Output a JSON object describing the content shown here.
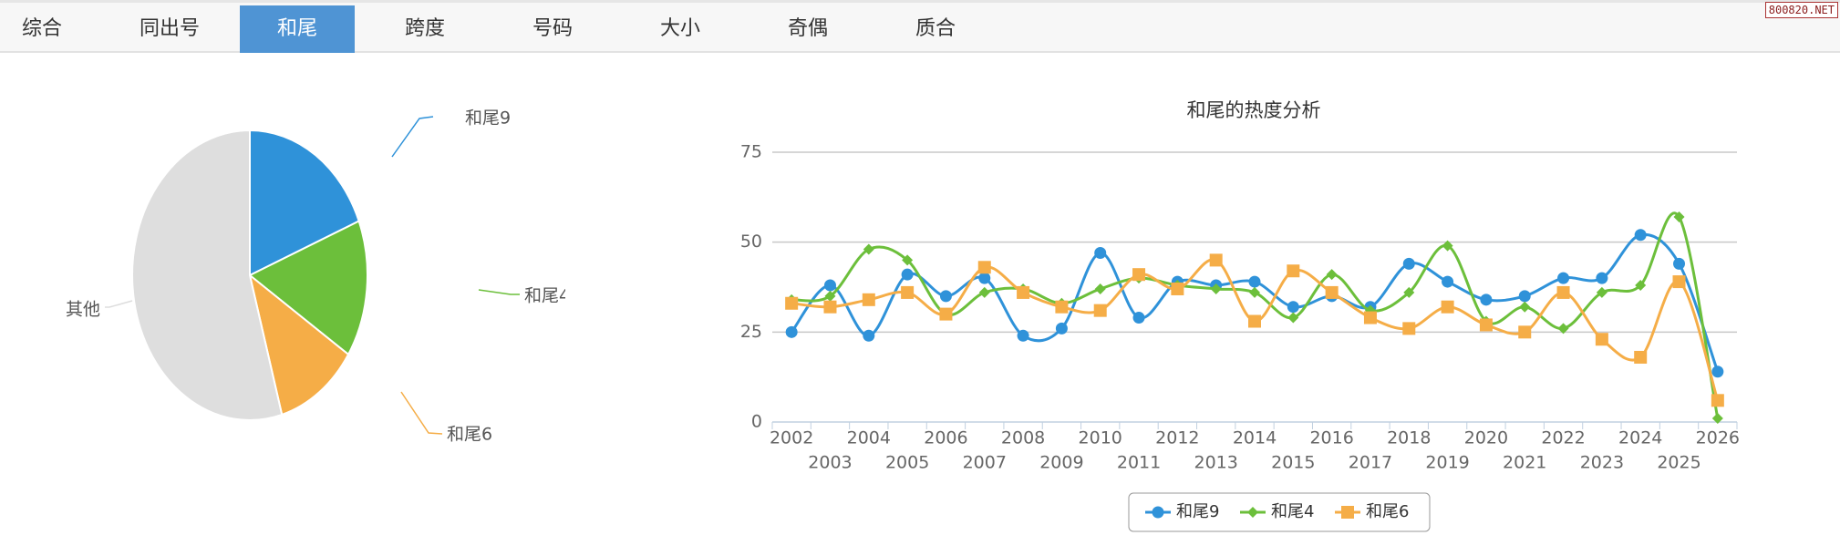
{
  "tabs": [
    {
      "label": "综合",
      "active": false
    },
    {
      "label": "同出号",
      "active": false
    },
    {
      "label": "和尾",
      "active": true
    },
    {
      "label": "跨度",
      "active": false
    },
    {
      "label": "号码",
      "active": false
    },
    {
      "label": "大小",
      "active": false
    },
    {
      "label": "奇偶",
      "active": false
    },
    {
      "label": "质合",
      "active": false
    }
  ],
  "watermark": "800820.NET",
  "chart_data": [
    {
      "type": "pie",
      "slices": [
        {
          "name": "和尾9",
          "value": 18.9,
          "color": "#2f92d9"
        },
        {
          "name": "和尾4",
          "value": 15.3,
          "color": "#6cbf3b"
        },
        {
          "name": "和尾6",
          "value": 11.4,
          "color": "#f5ad47"
        },
        {
          "name": "其他",
          "value": 54.4,
          "color": "#dedede"
        }
      ]
    },
    {
      "type": "line",
      "title": "和尾的热度分析",
      "categories": [
        "2002",
        "2003",
        "2004",
        "2005",
        "2006",
        "2007",
        "2008",
        "2009",
        "2010",
        "2011",
        "2012",
        "2013",
        "2014",
        "2015",
        "2016",
        "2017",
        "2018",
        "2019",
        "2020",
        "2021",
        "2022",
        "2023",
        "2024",
        "2025",
        "2026"
      ],
      "ylim": [
        0,
        75
      ],
      "yticks": [
        0,
        25,
        50,
        75
      ],
      "grid": true,
      "legend": "bottom-center",
      "series": [
        {
          "name": "和尾9",
          "color": "#2f92d9",
          "marker": "circle",
          "values": [
            25,
            38,
            24,
            41,
            35,
            40,
            24,
            26,
            47,
            29,
            39,
            38,
            39,
            32,
            35,
            32,
            44,
            39,
            34,
            35,
            40,
            40,
            52,
            44,
            14
          ]
        },
        {
          "name": "和尾4",
          "color": "#6cbf3b",
          "marker": "diamond",
          "values": [
            34,
            35,
            48,
            45,
            30,
            36,
            37,
            33,
            37,
            40,
            38,
            37,
            36,
            29,
            41,
            31,
            36,
            49,
            28,
            32,
            26,
            36,
            38,
            57,
            1
          ]
        },
        {
          "name": "和尾6",
          "color": "#f5ad47",
          "marker": "square",
          "values": [
            33,
            32,
            34,
            36,
            30,
            43,
            36,
            32,
            31,
            41,
            37,
            45,
            28,
            42,
            36,
            29,
            26,
            32,
            27,
            25,
            36,
            23,
            18,
            39,
            6
          ]
        }
      ]
    }
  ]
}
